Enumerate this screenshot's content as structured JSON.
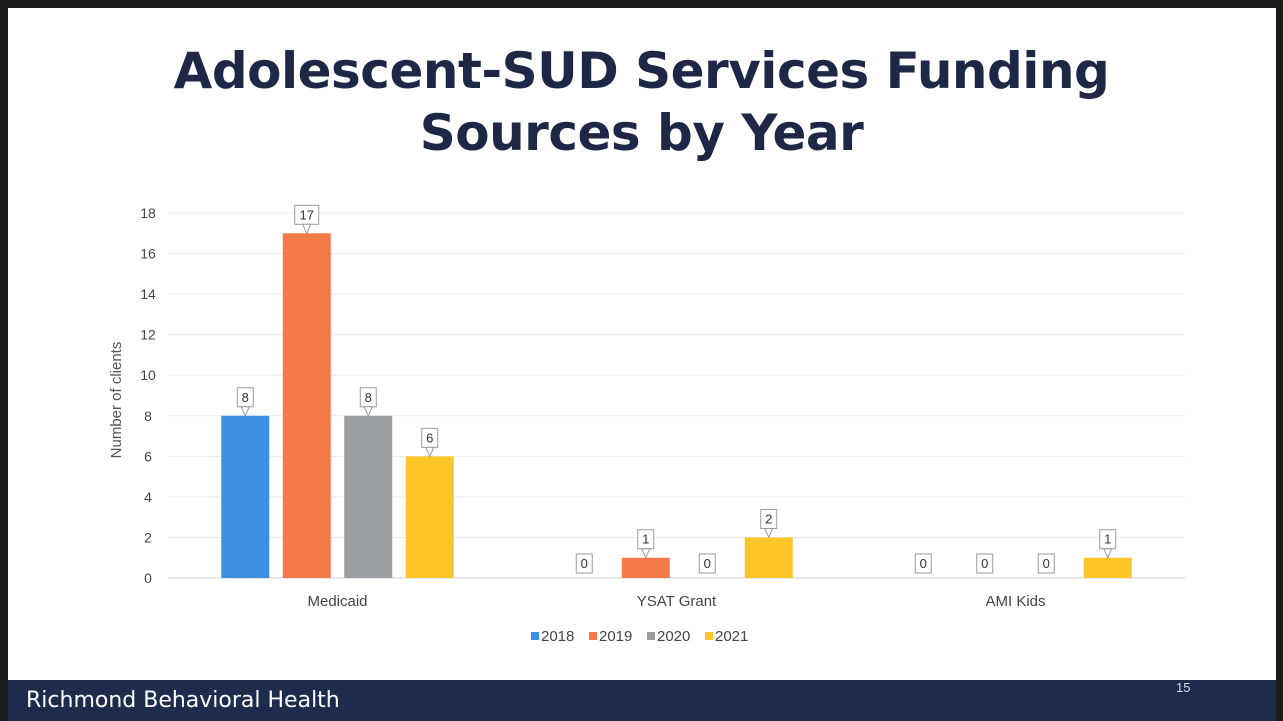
{
  "slide": {
    "title_line1": "Adolescent-SUD Services Funding",
    "title_line2": "Sources by Year",
    "footer": "Richmond Behavioral Health",
    "page_number": "15"
  },
  "chart_data": {
    "type": "bar",
    "title": "Adolescent-SUD Services Funding Sources by Year",
    "xlabel": "",
    "ylabel": "Number of clients",
    "ylim": [
      0,
      18
    ],
    "yticks": [
      0,
      2,
      4,
      6,
      8,
      10,
      12,
      14,
      16,
      18
    ],
    "grid": true,
    "legend_position": "bottom",
    "categories": [
      "Medicaid",
      "YSAT Grant",
      "AMI Kids"
    ],
    "series": [
      {
        "name": "2018",
        "color": "#3d8fe6",
        "values": [
          8,
          0,
          0
        ]
      },
      {
        "name": "2019",
        "color": "#f47a4a",
        "values": [
          17,
          1,
          0
        ]
      },
      {
        "name": "2020",
        "color": "#9a9ea3",
        "values": [
          8,
          0,
          0
        ]
      },
      {
        "name": "2021",
        "color": "#fcc62a",
        "values": [
          6,
          2,
          1
        ]
      }
    ]
  }
}
